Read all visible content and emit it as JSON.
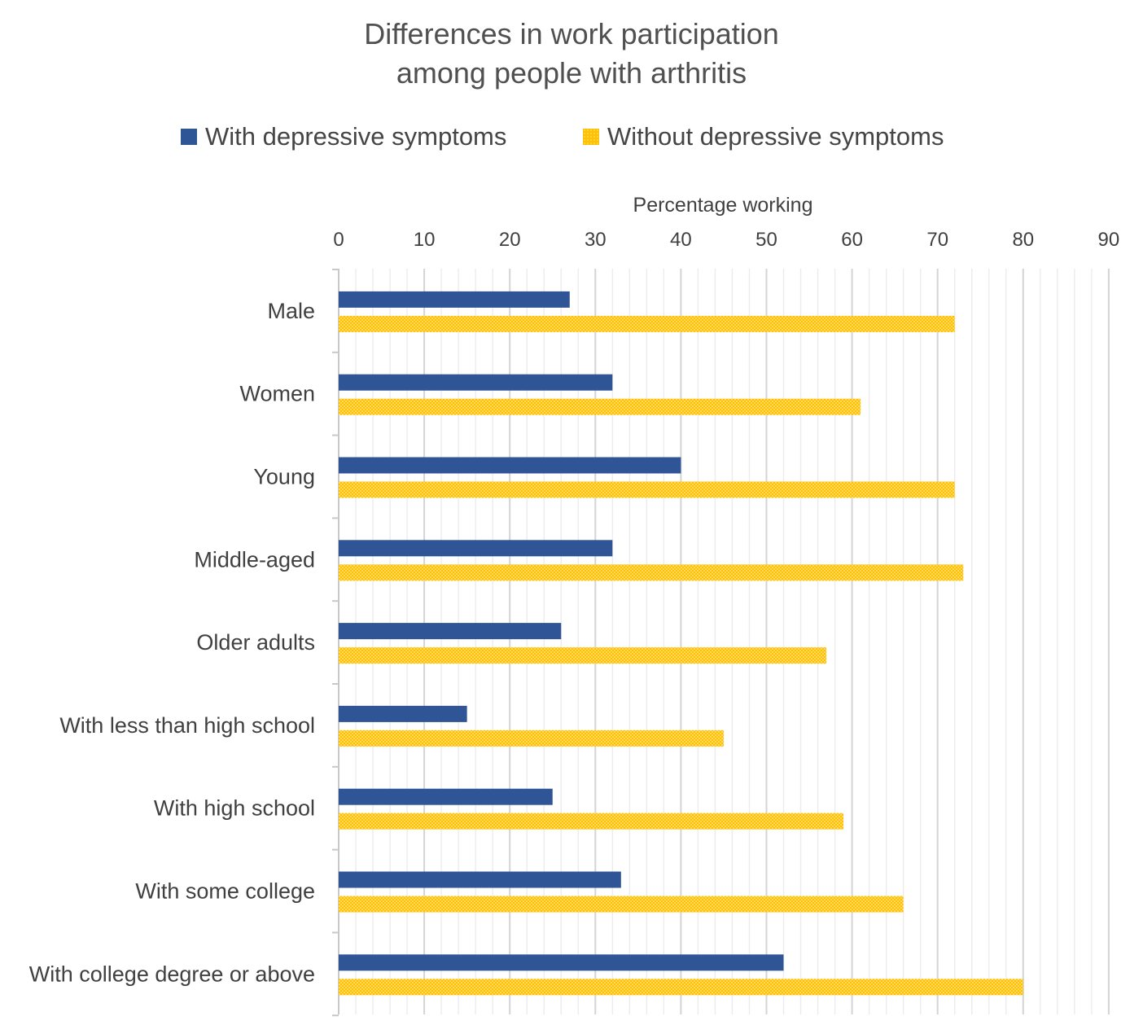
{
  "chart_data": {
    "type": "bar",
    "orientation": "horizontal",
    "title_lines": [
      "Differences in work participation",
      "among people with arthritis"
    ],
    "xlabel": "Percentage working",
    "ylabel": "",
    "xlim": [
      0,
      90
    ],
    "x_ticks": [
      "0",
      "10",
      "20",
      "30",
      "40",
      "50",
      "60",
      "70",
      "80",
      "90"
    ],
    "x_axis_position": "top",
    "grid": true,
    "legend_position": "top",
    "categories": [
      "Male",
      "Women",
      "Young",
      "Middle-aged",
      "Older adults",
      "With less than high school",
      "With high school",
      "With some college",
      "With college degree or above"
    ],
    "series": [
      {
        "name": "With depressive symptoms",
        "color": "#2F5597",
        "pattern": "solid",
        "values": [
          27,
          32,
          40,
          32,
          26,
          15,
          25,
          33,
          52
        ]
      },
      {
        "name": "Without depressive symptoms",
        "color": "#FFC000",
        "pattern": "dotted",
        "values": [
          72,
          61,
          72,
          73,
          57,
          45,
          59,
          66,
          80
        ]
      }
    ]
  }
}
